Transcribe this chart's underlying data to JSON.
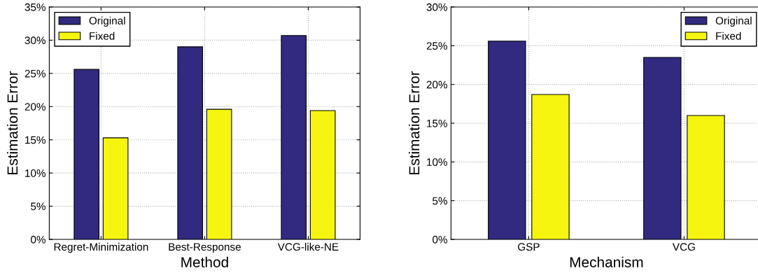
{
  "chart_data": [
    {
      "type": "bar",
      "xlabel": "Method",
      "ylabel": "Estimation Error",
      "categories": [
        "Regret-Minimization",
        "Best-Response",
        "VCG-like-NE"
      ],
      "series": [
        {
          "name": "Original",
          "color": "#312a80",
          "values": [
            25.6,
            29.0,
            30.7
          ]
        },
        {
          "name": "Fixed",
          "color": "#f5f50f",
          "values": [
            15.3,
            19.6,
            19.4
          ]
        }
      ],
      "ylim": [
        0,
        35
      ],
      "yticks": [
        {
          "value": 0,
          "label": "0%"
        },
        {
          "value": 5,
          "label": "5%"
        },
        {
          "value": 10,
          "label": "10%"
        },
        {
          "value": 15,
          "label": "15%"
        },
        {
          "value": 20,
          "label": "20%"
        },
        {
          "value": 25,
          "label": "25%"
        },
        {
          "value": 30,
          "label": "30%"
        },
        {
          "value": 35,
          "label": "35%"
        }
      ],
      "grid": true,
      "legend": "top left"
    },
    {
      "type": "bar",
      "xlabel": "Mechanism",
      "ylabel": "Estimation Error",
      "categories": [
        "GSP",
        "VCG"
      ],
      "series": [
        {
          "name": "Original",
          "color": "#312a80",
          "values": [
            25.6,
            23.5
          ]
        },
        {
          "name": "Fixed",
          "color": "#f5f50f",
          "values": [
            18.7,
            16.0
          ]
        }
      ],
      "ylim": [
        0,
        30
      ],
      "yticks": [
        {
          "value": 0,
          "label": "0%"
        },
        {
          "value": 5,
          "label": "5%"
        },
        {
          "value": 10,
          "label": "10%"
        },
        {
          "value": 15,
          "label": "15%"
        },
        {
          "value": 20,
          "label": "20%"
        },
        {
          "value": 25,
          "label": "25%"
        },
        {
          "value": 30,
          "label": "30%"
        }
      ],
      "grid": true,
      "legend": "top right"
    }
  ]
}
